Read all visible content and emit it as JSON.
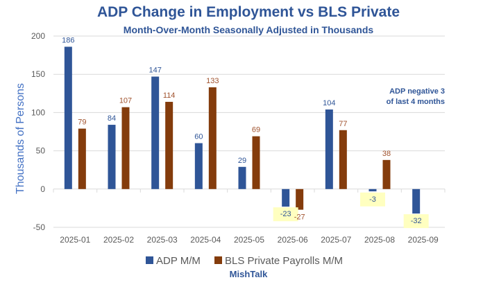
{
  "chart_data": {
    "type": "bar",
    "title": "ADP Change in Employment vs BLS Private",
    "subtitle": "Month-Over-Month Seasonally Adjusted in Thousands",
    "xlabel": "",
    "ylabel": "Thousands of Persons",
    "ylim": [
      -50,
      200
    ],
    "yticks": [
      -50,
      0,
      50,
      100,
      150,
      200
    ],
    "grid": true,
    "legend_position": "bottom",
    "categories": [
      "2025-01",
      "2025-02",
      "2025-03",
      "2025-04",
      "2025-05",
      "2025-06",
      "2025-07",
      "2025-08",
      "2025-09"
    ],
    "series": [
      {
        "name": "ADP M/M",
        "color": "#2f5597",
        "label_color": "#2f5597",
        "values": [
          186,
          84,
          147,
          60,
          29,
          -23,
          104,
          -3,
          -32
        ]
      },
      {
        "name": "BLS Private Payrolls M/M",
        "color": "#843c0c",
        "label_color": "#a0522d",
        "values": [
          79,
          107,
          114,
          133,
          69,
          -27,
          77,
          38,
          null
        ]
      }
    ],
    "highlight_color": "#ffffc0",
    "highlighted_labels": [
      "ADP M/M:2025-06",
      "ADP M/M:2025-08",
      "ADP M/M:2025-09"
    ],
    "annotation": [
      "ADP negative 3",
      "of last 4 months"
    ],
    "source": "MishTalk"
  }
}
